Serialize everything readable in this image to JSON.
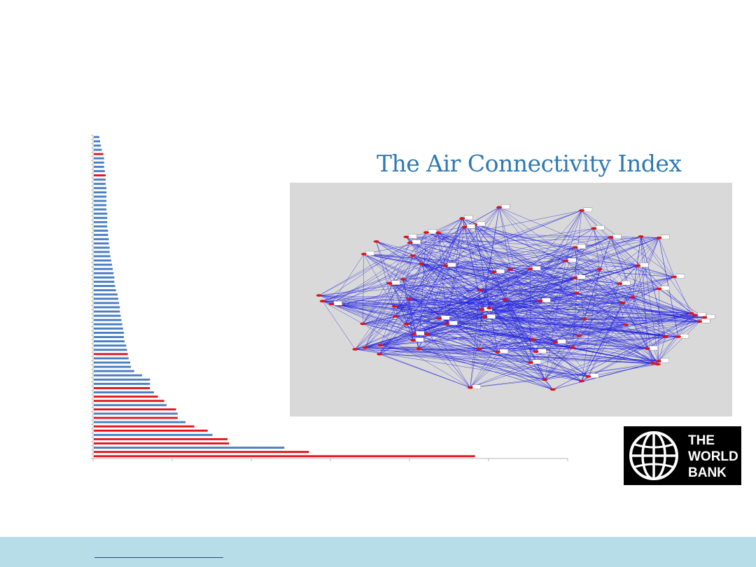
{
  "title": "The Air Connectivity Index",
  "logo": {
    "lines": [
      "THE",
      "WORLD",
      "BANK"
    ]
  },
  "colors": {
    "title": "#2e79b4",
    "bar_blue": "#4a7fc1",
    "bar_red": "#e0171f",
    "network_edge": "#1f1fe0",
    "network_node": "#e01010",
    "network_bg": "#d9d9d9",
    "footer": "#b7dde8"
  },
  "chart_data": {
    "type": "bar",
    "orientation": "horizontal",
    "xlim": [
      0,
      6
    ],
    "tick_labels_visible": false,
    "values": [
      0.07,
      0.08,
      0.09,
      0.1,
      0.12,
      0.13,
      0.13,
      0.13,
      0.14,
      0.15,
      0.15,
      0.15,
      0.16,
      0.16,
      0.16,
      0.16,
      0.16,
      0.16,
      0.17,
      0.17,
      0.17,
      0.17,
      0.18,
      0.18,
      0.19,
      0.19,
      0.2,
      0.2,
      0.21,
      0.22,
      0.23,
      0.24,
      0.25,
      0.26,
      0.26,
      0.27,
      0.28,
      0.3,
      0.31,
      0.32,
      0.33,
      0.33,
      0.34,
      0.35,
      0.36,
      0.37,
      0.38,
      0.38,
      0.39,
      0.41,
      0.42,
      0.43,
      0.44,
      0.46,
      0.47,
      0.51,
      0.61,
      0.71,
      0.71,
      0.71,
      0.76,
      0.81,
      0.89,
      0.92,
      1.04,
      1.06,
      1.06,
      1.16,
      1.27,
      1.44,
      1.5,
      1.69,
      1.71,
      2.41,
      2.72,
      4.82
    ],
    "highlight_indices": [
      4,
      9,
      51,
      59,
      61,
      62,
      64,
      66,
      68,
      69,
      71,
      72,
      74,
      75
    ]
  },
  "network": {
    "node_count": 85,
    "edge_count": 720
  }
}
